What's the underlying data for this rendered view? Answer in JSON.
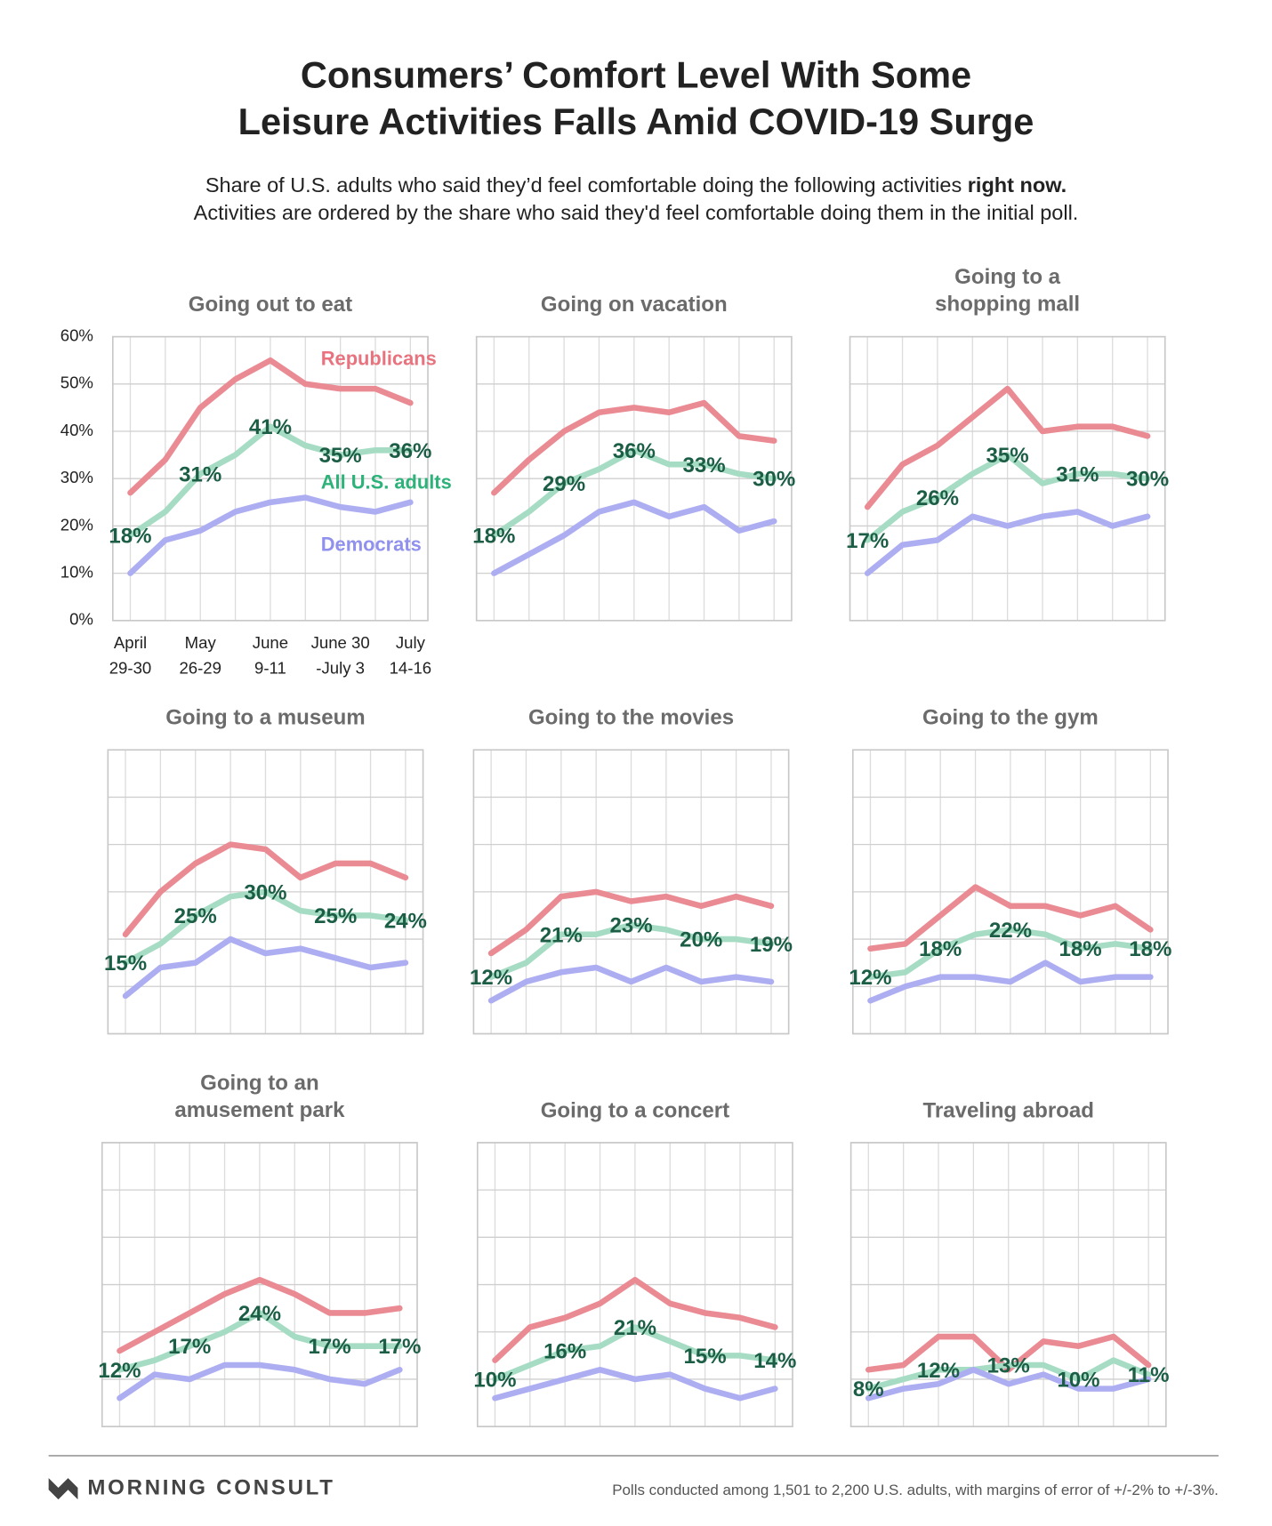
{
  "title": [
    "Consumers’ Comfort Level With Some",
    "Leisure Activities Falls Amid COVID-19 Surge"
  ],
  "subtitle": {
    "line1": "Share of U.S. adults who said they’d feel comfortable doing the following activities",
    "emphasis": "right now.",
    "line2": "Activities are ordered by the share who said they'd feel comfortable doing them in the initial poll."
  },
  "footer": {
    "brand": "MORNING CONSULT",
    "note": "Polls conducted among 1,501 to 2,200 U.S. adults, with margins of error of +/-2% to +/-3%."
  },
  "chart_data": [
    {
      "type": "line",
      "title": "Going out to eat",
      "grid": true,
      "categories": [
        "April\n29-30",
        null,
        "May\n26-29",
        null,
        "June\n9-11",
        null,
        "June 30\n-July 3",
        null,
        "July\n14-16"
      ],
      "ylim": [
        0,
        60
      ],
      "yticks": [
        {
          "value": 0,
          "label": "0%"
        },
        {
          "value": 10,
          "label": "10%"
        },
        {
          "value": 20,
          "label": "20%"
        },
        {
          "value": 30,
          "label": "30%"
        },
        {
          "value": 40,
          "label": "40%"
        },
        {
          "value": 50,
          "label": "50%"
        },
        {
          "value": 60,
          "label": "60%"
        }
      ],
      "series": [
        {
          "name": "Republicans",
          "color": "#ea8a93",
          "legend_color": "#e8737e",
          "values": [
            27,
            34,
            45,
            51,
            55,
            50,
            49,
            49,
            46
          ]
        },
        {
          "name": "All U.S. adults",
          "color": "#a6dcc4",
          "legend_color": "#2db27a",
          "label_color": "#1b5e45",
          "values": [
            18,
            23,
            31,
            35,
            41,
            37,
            35,
            36,
            36
          ],
          "value_labels": [
            "18%",
            null,
            "31%",
            null,
            "41%",
            null,
            "35%",
            null,
            "36%"
          ]
        },
        {
          "name": "Democrats",
          "color": "#adadf2",
          "legend_color": "#9090ee",
          "values": [
            10,
            17,
            19,
            23,
            25,
            26,
            24,
            23,
            25
          ]
        }
      ]
    },
    {
      "type": "line",
      "title": "Going on vacation",
      "grid": true,
      "ylim": [
        0,
        60
      ],
      "yticks": [
        0,
        10,
        20,
        30,
        40,
        50,
        60
      ],
      "series": [
        {
          "color": "#ea8a93",
          "values": [
            27,
            34,
            40,
            44,
            45,
            44,
            46,
            39,
            38
          ]
        },
        {
          "color": "#a6dcc4",
          "label_color": "#1b5e45",
          "values": [
            18,
            23,
            29,
            32,
            36,
            33,
            33,
            31,
            30
          ],
          "value_labels": [
            "18%",
            null,
            "29%",
            null,
            "36%",
            null,
            "33%",
            null,
            "30%"
          ]
        },
        {
          "color": "#adadf2",
          "values": [
            10,
            14,
            18,
            23,
            25,
            22,
            24,
            19,
            21
          ]
        }
      ]
    },
    {
      "type": "line",
      "title": "Going to a\nshopping mall",
      "grid": true,
      "ylim": [
        0,
        60
      ],
      "yticks": [
        0,
        10,
        20,
        30,
        40,
        50,
        60
      ],
      "series": [
        {
          "color": "#ea8a93",
          "values": [
            24,
            33,
            37,
            43,
            49,
            40,
            41,
            41,
            39
          ]
        },
        {
          "color": "#a6dcc4",
          "label_color": "#1b5e45",
          "values": [
            17,
            23,
            26,
            31,
            35,
            29,
            31,
            31,
            30
          ],
          "value_labels": [
            "17%",
            null,
            "26%",
            null,
            "35%",
            null,
            "31%",
            null,
            "30%"
          ]
        },
        {
          "color": "#adadf2",
          "values": [
            10,
            16,
            17,
            22,
            20,
            22,
            23,
            20,
            22
          ]
        }
      ]
    },
    {
      "type": "line",
      "title": "Going to a museum",
      "grid": true,
      "ylim": [
        0,
        60
      ],
      "yticks": [
        0,
        10,
        20,
        30,
        40,
        50,
        60
      ],
      "series": [
        {
          "color": "#ea8a93",
          "values": [
            21,
            30,
            36,
            40,
            39,
            33,
            36,
            36,
            33
          ]
        },
        {
          "color": "#a6dcc4",
          "label_color": "#1b5e45",
          "values": [
            15,
            19,
            25,
            29,
            30,
            26,
            25,
            25,
            24
          ],
          "value_labels": [
            "15%",
            null,
            "25%",
            null,
            "30%",
            null,
            "25%",
            null,
            "24%"
          ]
        },
        {
          "color": "#adadf2",
          "values": [
            8,
            14,
            15,
            20,
            17,
            18,
            16,
            14,
            15
          ]
        }
      ]
    },
    {
      "type": "line",
      "title": "Going to the movies",
      "grid": true,
      "ylim": [
        0,
        60
      ],
      "yticks": [
        0,
        10,
        20,
        30,
        40,
        50,
        60
      ],
      "series": [
        {
          "color": "#ea8a93",
          "values": [
            17,
            22,
            29,
            30,
            28,
            29,
            27,
            29,
            27
          ]
        },
        {
          "color": "#a6dcc4",
          "label_color": "#1b5e45",
          "values": [
            12,
            15,
            21,
            21,
            23,
            22,
            20,
            20,
            19
          ],
          "value_labels": [
            "12%",
            null,
            "21%",
            null,
            "23%",
            null,
            "20%",
            null,
            "19%"
          ]
        },
        {
          "color": "#adadf2",
          "values": [
            7,
            11,
            13,
            14,
            11,
            14,
            11,
            12,
            11
          ]
        }
      ]
    },
    {
      "type": "line",
      "title": "Going to the gym",
      "grid": true,
      "ylim": [
        0,
        60
      ],
      "yticks": [
        0,
        10,
        20,
        30,
        40,
        50,
        60
      ],
      "series": [
        {
          "color": "#ea8a93",
          "values": [
            18,
            19,
            25,
            31,
            27,
            27,
            25,
            27,
            22
          ]
        },
        {
          "color": "#a6dcc4",
          "label_color": "#1b5e45",
          "values": [
            12,
            13,
            18,
            21,
            22,
            21,
            18,
            19,
            18
          ],
          "value_labels": [
            "12%",
            null,
            "18%",
            null,
            "22%",
            null,
            "18%",
            null,
            "18%"
          ]
        },
        {
          "color": "#adadf2",
          "values": [
            7,
            10,
            12,
            12,
            11,
            15,
            11,
            12,
            12
          ]
        }
      ]
    },
    {
      "type": "line",
      "title": "Going to an\namusement park",
      "grid": true,
      "ylim": [
        0,
        60
      ],
      "yticks": [
        0,
        10,
        20,
        30,
        40,
        50,
        60
      ],
      "series": [
        {
          "color": "#ea8a93",
          "values": [
            16,
            20,
            24,
            28,
            31,
            28,
            24,
            24,
            25
          ]
        },
        {
          "color": "#a6dcc4",
          "label_color": "#1b5e45",
          "values": [
            12,
            14,
            17,
            20,
            24,
            19,
            17,
            17,
            17
          ],
          "value_labels": [
            "12%",
            null,
            "17%",
            null,
            "24%",
            null,
            "17%",
            null,
            "17%"
          ]
        },
        {
          "color": "#adadf2",
          "values": [
            6,
            11,
            10,
            13,
            13,
            12,
            10,
            9,
            12
          ]
        }
      ]
    },
    {
      "type": "line",
      "title": "Going to a concert",
      "grid": true,
      "ylim": [
        0,
        60
      ],
      "yticks": [
        0,
        10,
        20,
        30,
        40,
        50,
        60
      ],
      "series": [
        {
          "color": "#ea8a93",
          "values": [
            14,
            21,
            23,
            26,
            31,
            26,
            24,
            23,
            21
          ]
        },
        {
          "color": "#a6dcc4",
          "label_color": "#1b5e45",
          "values": [
            10,
            13,
            16,
            17,
            21,
            18,
            15,
            15,
            14
          ],
          "value_labels": [
            "10%",
            null,
            "16%",
            null,
            "21%",
            null,
            "15%",
            null,
            "14%"
          ]
        },
        {
          "color": "#adadf2",
          "values": [
            6,
            8,
            10,
            12,
            10,
            11,
            8,
            6,
            8
          ]
        }
      ]
    },
    {
      "type": "line",
      "title": "Traveling abroad",
      "grid": true,
      "ylim": [
        0,
        60
      ],
      "yticks": [
        0,
        10,
        20,
        30,
        40,
        50,
        60
      ],
      "series": [
        {
          "color": "#ea8a93",
          "values": [
            12,
            13,
            19,
            19,
            12,
            18,
            17,
            19,
            13
          ]
        },
        {
          "color": "#a6dcc4",
          "label_color": "#1b5e45",
          "values": [
            8,
            10,
            12,
            12,
            13,
            13,
            10,
            14,
            11
          ],
          "value_labels": [
            "8%",
            null,
            "12%",
            null,
            "13%",
            null,
            "10%",
            null,
            "11%"
          ]
        },
        {
          "color": "#adadf2",
          "values": [
            6,
            8,
            9,
            12,
            9,
            11,
            8,
            8,
            10
          ]
        }
      ]
    }
  ]
}
